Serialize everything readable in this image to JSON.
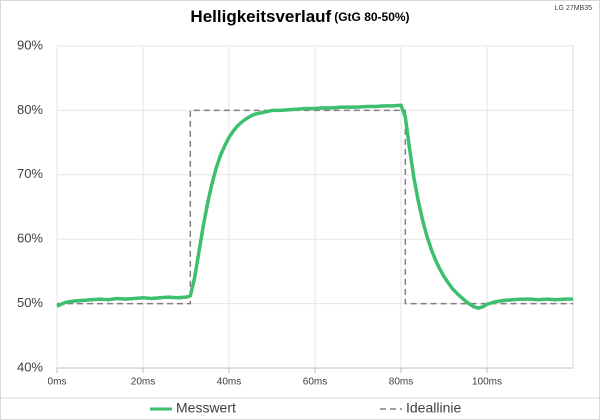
{
  "chart_data": {
    "type": "line",
    "title": "Helligkeitsverlauf",
    "subtitle": "(GtG 80-50%)",
    "note": "LG 27MB35",
    "xlim": [
      0,
      120
    ],
    "ylim": [
      40,
      90
    ],
    "xticks": [
      {
        "value": 0,
        "label": "0ms"
      },
      {
        "value": 20,
        "label": "20ms"
      },
      {
        "value": 40,
        "label": "40ms"
      },
      {
        "value": 60,
        "label": "60ms"
      },
      {
        "value": 80,
        "label": "80ms"
      },
      {
        "value": 100,
        "label": "100ms"
      }
    ],
    "yticks": [
      {
        "value": 40,
        "label": "40%"
      },
      {
        "value": 50,
        "label": "50%"
      },
      {
        "value": 60,
        "label": "60%"
      },
      {
        "value": 70,
        "label": "70%"
      },
      {
        "value": 80,
        "label": "80%"
      },
      {
        "value": 90,
        "label": "90%"
      }
    ],
    "grid": true,
    "legend": "bottom",
    "series": [
      {
        "name": "Messwert",
        "color": "#3cbf6e",
        "dash": false,
        "x": [
          0,
          2,
          4,
          6,
          8,
          10,
          12,
          14,
          16,
          18,
          20,
          22,
          24,
          26,
          28,
          30,
          31,
          32,
          33,
          34,
          35,
          36,
          37,
          38,
          39,
          40,
          41,
          42,
          43,
          44,
          45,
          46,
          48,
          50,
          52,
          54,
          56,
          58,
          60,
          62,
          64,
          66,
          68,
          70,
          72,
          74,
          76,
          78,
          80,
          81,
          82,
          83,
          84,
          85,
          86,
          87,
          88,
          89,
          90,
          91,
          92,
          93,
          94,
          95,
          96,
          97,
          98,
          99,
          100,
          102,
          104,
          106,
          108,
          110,
          112,
          114,
          116,
          118,
          120
        ],
        "values": [
          49.6,
          50.2,
          50.4,
          50.5,
          50.6,
          50.7,
          50.6,
          50.8,
          50.7,
          50.8,
          50.9,
          50.8,
          50.9,
          51,
          50.9,
          51,
          51.2,
          54,
          58,
          62,
          65.5,
          68.5,
          71,
          73,
          74.5,
          75.8,
          76.8,
          77.6,
          78.2,
          78.7,
          79.1,
          79.4,
          79.7,
          80,
          80,
          80.1,
          80.2,
          80.3,
          80.3,
          80.4,
          80.4,
          80.5,
          80.5,
          80.5,
          80.6,
          80.6,
          80.7,
          80.7,
          80.8,
          79,
          74,
          69.5,
          66,
          63,
          60.5,
          58.5,
          56.8,
          55.4,
          54.2,
          53.2,
          52.3,
          51.6,
          51,
          50.4,
          49.9,
          49.5,
          49.3,
          49.5,
          49.9,
          50.3,
          50.5,
          50.6,
          50.7,
          50.7,
          50.6,
          50.7,
          50.6,
          50.7,
          50.7
        ]
      },
      {
        "name": "Ideallinie",
        "color": "#808080",
        "dash": true,
        "x": [
          0,
          31,
          31,
          81,
          81,
          120
        ],
        "values": [
          50,
          50,
          80,
          80,
          50,
          50
        ]
      }
    ]
  }
}
